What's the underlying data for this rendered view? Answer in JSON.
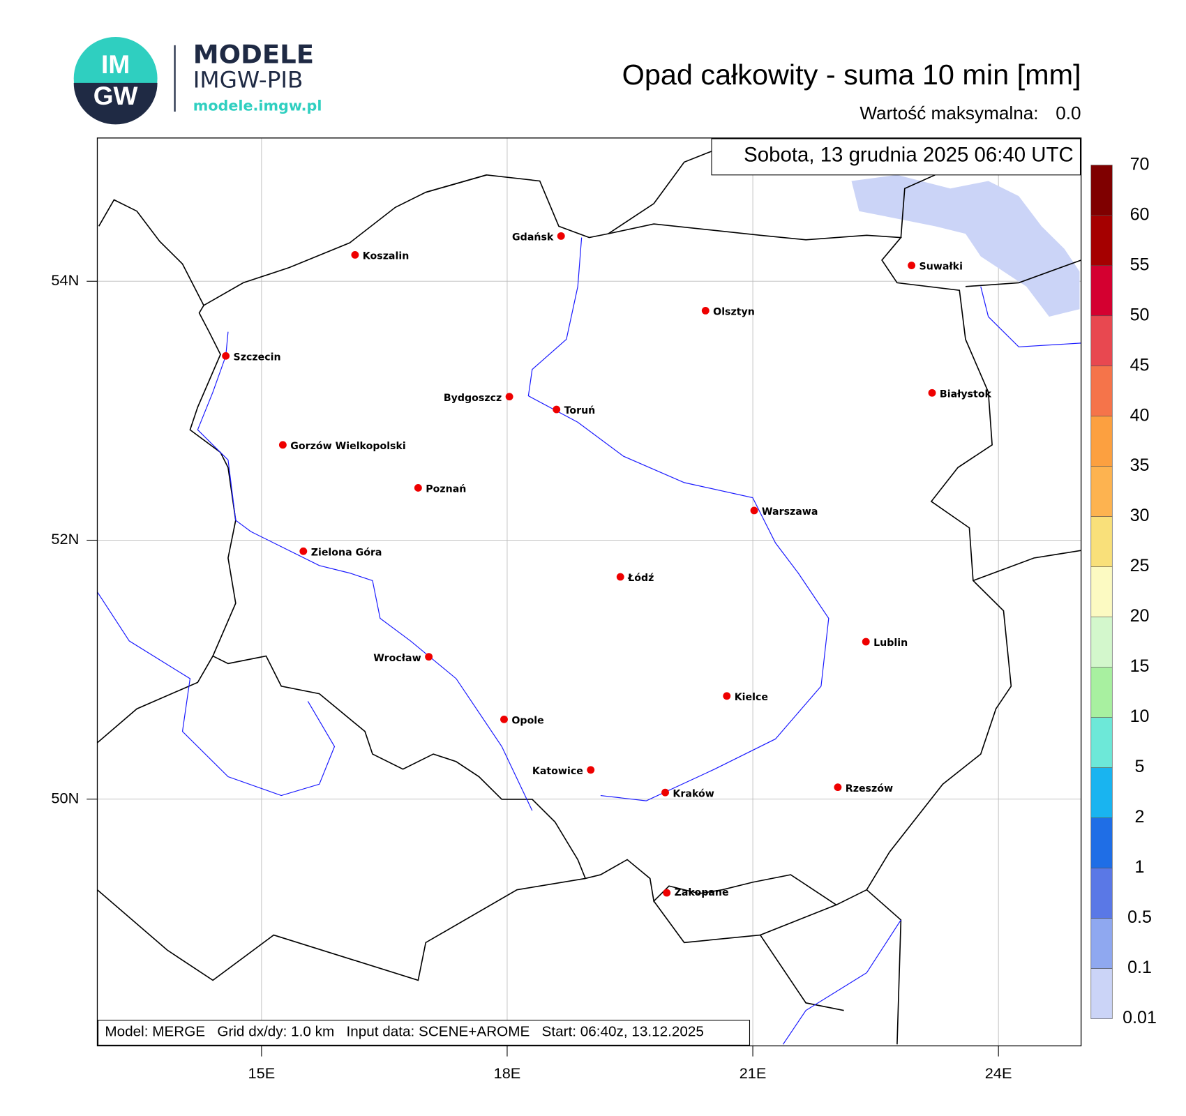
{
  "logo": {
    "circle_top": "IM",
    "circle_bottom": "GW",
    "name": "MODELE",
    "org": "IMGW-PIB",
    "url": "modele.imgw.pl"
  },
  "header": {
    "title": "Opad całkowity - suma 10 min [mm]",
    "max_label": "Wartość maksymalna:",
    "max_value": "0.0"
  },
  "map": {
    "date": "Sobota, 13 grudnia 2025 06:40 UTC",
    "footer": "Model: MERGE   Grid dx/dy: 1.0 km   Input data: SCENE+AROME   Start: 06:40z, 13.12.2025",
    "lat_ticks": [
      {
        "value": 54,
        "label": "54N"
      },
      {
        "value": 52,
        "label": "52N"
      },
      {
        "value": 50,
        "label": "50N"
      }
    ],
    "lon_ticks": [
      {
        "value": 15,
        "label": "15E"
      },
      {
        "value": 18,
        "label": "18E"
      },
      {
        "value": 21,
        "label": "21E"
      },
      {
        "value": 24,
        "label": "24E"
      }
    ],
    "cities": [
      "Gdańsk",
      "Koszalin",
      "Szczecin",
      "Suwałki",
      "Olsztyn",
      "Białystok",
      "Bydgoszcz",
      "Toruń",
      "Gorzów Wielkopolski",
      "Poznań",
      "Warszawa",
      "Zielona Góra",
      "Łódź",
      "Lublin",
      "Wrocław",
      "Kielce",
      "Opole",
      "Katowice",
      "Rzeszów",
      "Kraków",
      "Zakopane"
    ]
  },
  "colorbar": {
    "levels": [
      0.01,
      0.1,
      0.5,
      1,
      2,
      5,
      10,
      15,
      20,
      25,
      30,
      35,
      40,
      45,
      50,
      55,
      60,
      70
    ],
    "colors": [
      "#cbd4f7",
      "#8fa8f0",
      "#5a78e6",
      "#1f6ee6",
      "#19b4f0",
      "#6de8d8",
      "#a8f0a0",
      "#d3f7cc",
      "#fcfac2",
      "#f9e07a",
      "#fdb350",
      "#fca040",
      "#f5744a",
      "#e84850",
      "#d40030",
      "#a50000",
      "#7f0000"
    ]
  }
}
